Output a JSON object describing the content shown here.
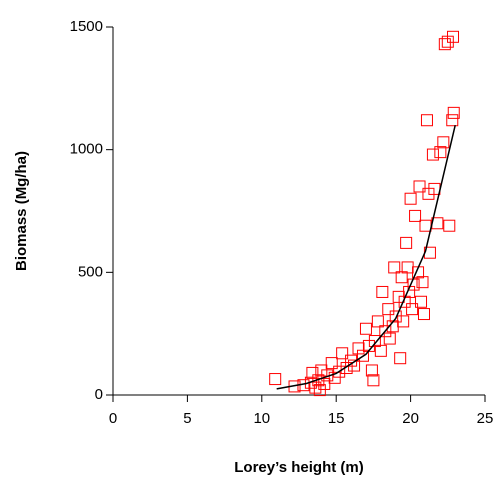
{
  "chart_data": {
    "type": "scatter",
    "x_label": "Lorey’s height (m)",
    "y_label": "Biomass (Mg/ha)",
    "xlim": [
      0,
      25
    ],
    "ylim": [
      0,
      1500
    ],
    "xticks": [
      0,
      5,
      10,
      15,
      20,
      25
    ],
    "yticks": [
      0,
      500,
      1000,
      1500
    ],
    "series": [
      {
        "type": "scatter",
        "color": "#ff0000",
        "x": [
          10.9,
          12.2,
          12.8,
          13.3,
          13.4,
          13.6,
          13.8,
          13.9,
          14.0,
          14.2,
          14.4,
          14.7,
          14.9,
          15.2,
          15.4,
          15.7,
          16.0,
          16.2,
          16.5,
          16.8,
          17.0,
          17.2,
          17.4,
          17.5,
          17.6,
          17.8,
          18.0,
          18.1,
          18.3,
          18.5,
          18.6,
          18.8,
          18.9,
          19.0,
          19.2,
          19.3,
          19.4,
          19.5,
          19.6,
          19.7,
          19.8,
          19.9,
          20.0,
          20.1,
          20.2,
          20.3,
          20.5,
          20.6,
          20.7,
          20.8,
          20.9,
          21.0,
          21.1,
          21.2,
          21.3,
          21.5,
          21.6,
          21.8,
          22.0,
          22.2,
          22.3,
          22.5,
          22.6,
          22.8,
          22.9,
          22.85
        ],
        "values": [
          65,
          35,
          40,
          50,
          90,
          30,
          60,
          20,
          100,
          45,
          80,
          130,
          70,
          95,
          170,
          110,
          140,
          120,
          190,
          160,
          270,
          200,
          100,
          60,
          220,
          300,
          180,
          420,
          260,
          350,
          230,
          280,
          520,
          320,
          400,
          150,
          480,
          300,
          380,
          620,
          520,
          420,
          800,
          350,
          450,
          730,
          500,
          850,
          380,
          460,
          330,
          690,
          1120,
          820,
          580,
          980,
          840,
          700,
          990,
          1030,
          1430,
          1440,
          690,
          1120,
          1150,
          1460
        ]
      },
      {
        "type": "line",
        "color": "#000000",
        "x": [
          11,
          13,
          15,
          17,
          19,
          21,
          23
        ],
        "values": [
          25,
          47,
          88,
          166,
          312,
          586,
          1100
        ]
      }
    ]
  }
}
